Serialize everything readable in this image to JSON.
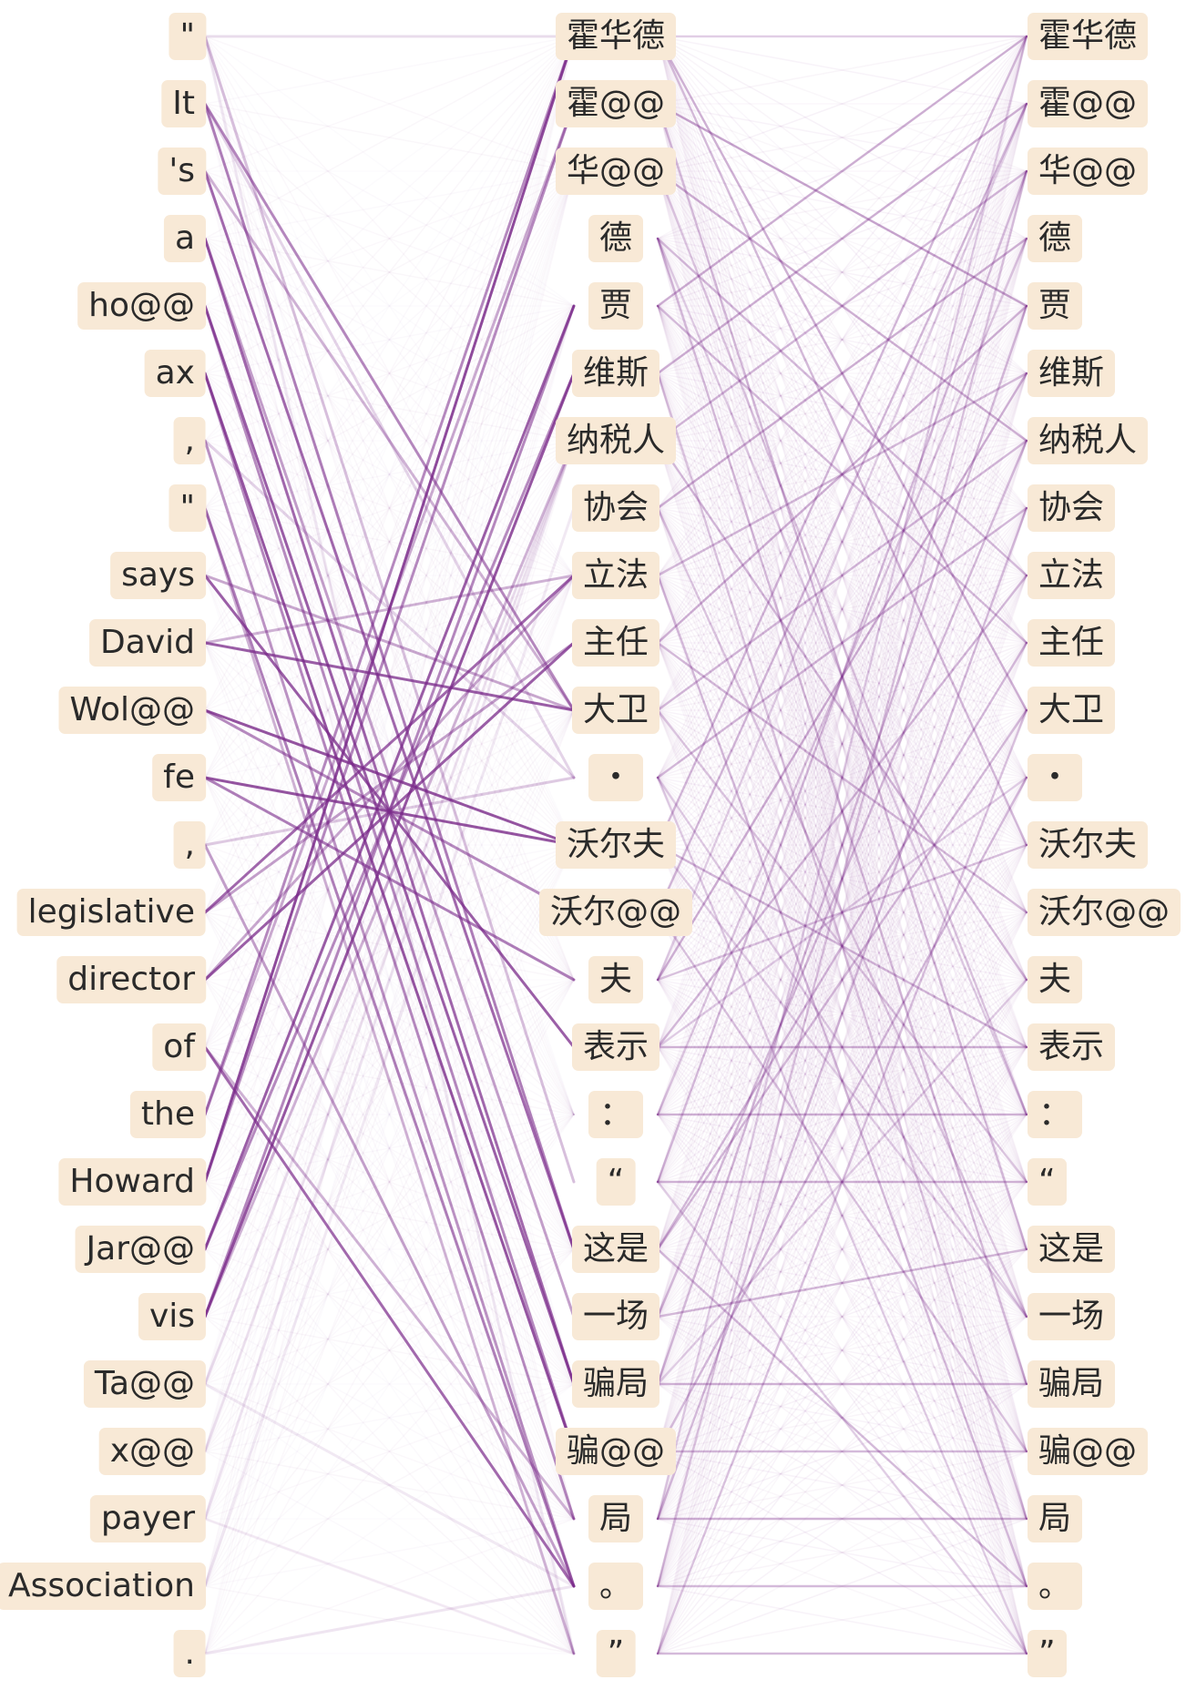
{
  "diagram": {
    "edge_color": "#7a2a8a",
    "token_bg": "#f8e9d6",
    "columns": {
      "left": [
        "\"",
        "It",
        "'s",
        "a",
        "ho@@",
        "ax",
        ",",
        "\"",
        "says",
        "David",
        "Wol@@",
        "fe",
        ",",
        "legislative",
        "director",
        "of",
        "the",
        "Howard",
        "Jar@@",
        "vis",
        "Ta@@",
        "x@@",
        "payer",
        "Association",
        "."
      ],
      "middle": [
        "霍华德",
        "霍@@",
        "华@@",
        "德",
        "贾",
        "维斯",
        "纳税人",
        "协会",
        "立法",
        "主任",
        "大卫",
        "・",
        "沃尔夫",
        "沃尔@@",
        "夫",
        "表示",
        "：",
        "“",
        "这是",
        "一场",
        "骗局",
        "骗@@",
        "局",
        "。",
        "”"
      ],
      "right": [
        "霍华德",
        "霍@@",
        "华@@",
        "德",
        "贾",
        "维斯",
        "纳税人",
        "协会",
        "立法",
        "主任",
        "大卫",
        "・",
        "沃尔夫",
        "沃尔@@",
        "夫",
        "表示",
        "：",
        "“",
        "这是",
        "一场",
        "骗局",
        "骗@@",
        "局",
        "。",
        "”"
      ]
    },
    "strong_links_left_to_middle": [
      [
        0,
        0,
        0.15
      ],
      [
        1,
        10,
        0.55
      ],
      [
        1,
        18,
        0.6
      ],
      [
        2,
        18,
        0.7
      ],
      [
        2,
        10,
        0.35
      ],
      [
        3,
        20,
        0.7
      ],
      [
        3,
        19,
        0.45
      ],
      [
        4,
        20,
        0.75
      ],
      [
        4,
        21,
        0.55
      ],
      [
        5,
        21,
        0.8
      ],
      [
        5,
        22,
        0.55
      ],
      [
        6,
        23,
        0.5
      ],
      [
        7,
        23,
        0.6
      ],
      [
        7,
        24,
        0.35
      ],
      [
        8,
        15,
        0.75
      ],
      [
        8,
        10,
        0.4
      ],
      [
        9,
        10,
        0.75
      ],
      [
        9,
        8,
        0.35
      ],
      [
        10,
        12,
        0.8
      ],
      [
        10,
        13,
        0.55
      ],
      [
        11,
        12,
        0.8
      ],
      [
        11,
        14,
        0.6
      ],
      [
        12,
        23,
        0.45
      ],
      [
        13,
        8,
        0.7
      ],
      [
        13,
        9,
        0.45
      ],
      [
        14,
        9,
        0.75
      ],
      [
        14,
        8,
        0.4
      ],
      [
        15,
        23,
        0.7
      ],
      [
        15,
        22,
        0.35
      ],
      [
        16,
        0,
        0.55
      ],
      [
        16,
        1,
        0.4
      ],
      [
        17,
        0,
        0.85
      ],
      [
        17,
        1,
        0.55
      ],
      [
        18,
        4,
        0.75
      ],
      [
        18,
        5,
        0.55
      ],
      [
        19,
        5,
        0.8
      ],
      [
        19,
        4,
        0.55
      ],
      [
        19,
        6,
        0.35
      ],
      [
        20,
        6,
        0.15
      ],
      [
        21,
        6,
        0.12
      ],
      [
        22,
        6,
        0.12
      ],
      [
        23,
        7,
        0.1
      ],
      [
        24,
        23,
        0.12
      ],
      [
        0,
        17,
        0.3
      ],
      [
        1,
        11,
        0.2
      ],
      [
        6,
        11,
        0.2
      ],
      [
        12,
        11,
        0.25
      ],
      [
        20,
        23,
        0.1
      ],
      [
        22,
        24,
        0.08
      ],
      [
        0,
        24,
        0.1
      ]
    ],
    "strong_links_middle_to_right": [
      [
        0,
        0,
        0.2
      ],
      [
        0,
        10,
        0.35
      ],
      [
        0,
        12,
        0.3
      ],
      [
        1,
        4,
        0.4
      ],
      [
        1,
        18,
        0.3
      ],
      [
        2,
        6,
        0.35
      ],
      [
        2,
        16,
        0.25
      ],
      [
        3,
        8,
        0.3
      ],
      [
        3,
        20,
        0.3
      ],
      [
        4,
        0,
        0.35
      ],
      [
        4,
        9,
        0.3
      ],
      [
        5,
        1,
        0.35
      ],
      [
        5,
        22,
        0.25
      ],
      [
        6,
        2,
        0.3
      ],
      [
        6,
        14,
        0.3
      ],
      [
        7,
        3,
        0.35
      ],
      [
        7,
        19,
        0.25
      ],
      [
        8,
        5,
        0.3
      ],
      [
        8,
        23,
        0.3
      ],
      [
        9,
        4,
        0.35
      ],
      [
        9,
        13,
        0.3
      ],
      [
        10,
        6,
        0.3
      ],
      [
        10,
        17,
        0.25
      ],
      [
        11,
        7,
        0.3
      ],
      [
        11,
        24,
        0.2
      ],
      [
        12,
        0,
        0.3
      ],
      [
        12,
        15,
        0.3
      ],
      [
        13,
        1,
        0.3
      ],
      [
        13,
        21,
        0.25
      ],
      [
        14,
        5,
        0.35
      ],
      [
        14,
        12,
        0.25
      ],
      [
        15,
        8,
        0.3
      ],
      [
        15,
        15,
        0.35
      ],
      [
        16,
        16,
        0.35
      ],
      [
        16,
        3,
        0.25
      ],
      [
        17,
        2,
        0.3
      ],
      [
        17,
        17,
        0.35
      ],
      [
        18,
        9,
        0.3
      ],
      [
        18,
        23,
        0.3
      ],
      [
        19,
        6,
        0.3
      ],
      [
        19,
        18,
        0.3
      ],
      [
        20,
        4,
        0.3
      ],
      [
        20,
        20,
        0.35
      ],
      [
        21,
        11,
        0.3
      ],
      [
        21,
        21,
        0.3
      ],
      [
        22,
        7,
        0.3
      ],
      [
        22,
        22,
        0.35
      ],
      [
        23,
        23,
        0.3
      ],
      [
        23,
        2,
        0.25
      ],
      [
        24,
        24,
        0.3
      ],
      [
        24,
        10,
        0.25
      ],
      [
        17,
        24,
        0.2
      ],
      [
        18,
        10,
        0.3
      ],
      [
        20,
        14,
        0.2
      ],
      [
        3,
        16,
        0.2
      ],
      [
        11,
        19,
        0.2
      ],
      [
        14,
        1,
        0.2
      ],
      [
        12,
        19,
        0.2
      ],
      [
        15,
        11,
        0.2
      ],
      [
        22,
        0,
        0.2
      ]
    ]
  }
}
